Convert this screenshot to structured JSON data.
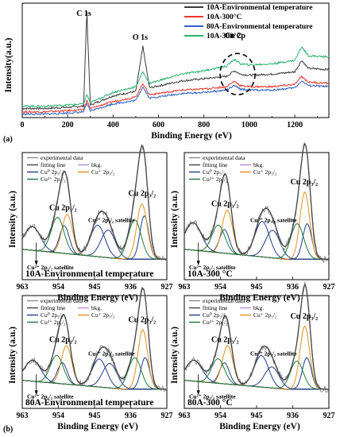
{
  "figure_labels": {
    "a": "(a)",
    "b": "(b)"
  },
  "chart_data": [
    {
      "type": "line",
      "panel": "a",
      "xlabel": "Binding Energy (eV)",
      "ylabel": "Intensity(a.u.)",
      "xlim": [
        0,
        1350
      ],
      "xticks": [
        "0",
        "200",
        "400",
        "600",
        "800",
        "1000",
        "1200"
      ],
      "legend_position": "top-right",
      "annotations": [
        "C 1s",
        "O 1s",
        "Cu 2p"
      ],
      "series": [
        {
          "name": "10A-Environmental temperature",
          "color": "#3a3a3a",
          "x": [
            0,
            100,
            200,
            270,
            284,
            300,
            400,
            500,
            531,
            560,
            700,
            800,
            900,
            934,
            960,
            1000,
            1100,
            1200,
            1230,
            1260,
            1350
          ],
          "y": [
            8,
            8,
            9,
            10,
            92,
            11,
            19,
            23,
            62,
            26,
            32,
            34,
            36,
            41,
            38,
            37,
            38,
            40,
            50,
            43,
            42
          ]
        },
        {
          "name": "10A-300°C",
          "color": "#e8372c",
          "x": [
            0,
            100,
            200,
            270,
            284,
            300,
            400,
            500,
            531,
            560,
            700,
            800,
            900,
            934,
            960,
            1000,
            1100,
            1200,
            1230,
            1260,
            1350
          ],
          "y": [
            5,
            5,
            6,
            7,
            15,
            8,
            14,
            18,
            30,
            20,
            24,
            25,
            27,
            32,
            28,
            27,
            27,
            29,
            36,
            31,
            30
          ]
        },
        {
          "name": "80A-Environmental temperature",
          "color": "#2e60c4",
          "x": [
            0,
            100,
            200,
            270,
            284,
            300,
            400,
            500,
            531,
            560,
            700,
            800,
            900,
            934,
            960,
            1000,
            1100,
            1200,
            1230,
            1260,
            1350
          ],
          "y": [
            3,
            3,
            4,
            5,
            12,
            6,
            12,
            15,
            27,
            17,
            21,
            22,
            24,
            28,
            25,
            24,
            24,
            26,
            32,
            28,
            27
          ]
        },
        {
          "name": "10A-300°C",
          "color": "#27b36b",
          "x": [
            0,
            100,
            200,
            270,
            284,
            300,
            400,
            500,
            531,
            560,
            700,
            800,
            900,
            934,
            960,
            1000,
            1100,
            1200,
            1230,
            1260,
            1350
          ],
          "y": [
            10,
            10,
            11,
            12,
            20,
            13,
            22,
            27,
            40,
            30,
            38,
            41,
            45,
            51,
            47,
            46,
            47,
            50,
            62,
            54,
            53
          ]
        }
      ]
    },
    {
      "type": "line",
      "panel": "b1",
      "xlabel": "Binding Energy (eV)",
      "ylabel": "Intensity (a.u.)",
      "xlim": [
        963,
        927
      ],
      "xticks": [
        "963",
        "954",
        "945",
        "936",
        "927"
      ],
      "sample_label": "10A-Environmental temperature",
      "legend": [
        "experimental data",
        "fitting line",
        "bkg.",
        "Cu⁰ 2p₃/₂",
        "Cu⁺ 2p₃/₂",
        "Cu²⁺ 2p₁/₂"
      ],
      "annotations": [
        "Cu 2p₁/₂",
        "Cu 2p₃/₂",
        "Cu²⁺ 2p₃/₂ satellite",
        "Cu²⁺ 2p₁/₂ satellite"
      ],
      "peaks": [
        {
          "component": "Cu⁰",
          "center": 952.5,
          "height": 0.35,
          "width": 1.2
        },
        {
          "component": "Cu⁺",
          "center": 951.8,
          "height": 0.5,
          "width": 1.3
        },
        {
          "component": "Cu²⁺",
          "center": 954.2,
          "height": 0.45,
          "width": 1.6
        },
        {
          "component": "Cu²⁺ sat",
          "center": 960.5,
          "height": 0.3,
          "width": 2.0
        },
        {
          "component": "Cu²⁺ sat",
          "center": 944.2,
          "height": 0.4,
          "width": 1.8
        },
        {
          "component": "Cu²⁺ sat",
          "center": 941.6,
          "height": 0.35,
          "width": 1.8
        },
        {
          "component": "Cu⁰",
          "center": 932.6,
          "height": 0.55,
          "width": 1.1
        },
        {
          "component": "Cu⁺",
          "center": 933.2,
          "height": 0.7,
          "width": 1.3
        },
        {
          "component": "Cu²⁺",
          "center": 935.0,
          "height": 0.5,
          "width": 1.6
        }
      ]
    },
    {
      "type": "line",
      "panel": "b2",
      "xlabel": "Binding Energy (eV)",
      "ylabel": "Intensity (a.u.)",
      "xlim": [
        963,
        927
      ],
      "xticks": [
        "963",
        "954",
        "945",
        "936",
        "927"
      ],
      "sample_label": "10A-300 °C",
      "legend": [
        "experimental data",
        "fitting line",
        "bkg.",
        "Cu⁰ 2p₃/₂",
        "Cu⁺ 2p₃/₂",
        "Cu²⁺ 2p₁/₂"
      ],
      "annotations": [
        "Cu 2p₁/₂",
        "Cu 2p₃/₂",
        "Cu²⁺ 2p₃/₂ satellite",
        "Cu²⁺ 2p₁/₂ satellite"
      ],
      "peaks": [
        {
          "component": "Cu⁰",
          "center": 953.0,
          "height": 0.3,
          "width": 1.2
        },
        {
          "component": "Cu⁺",
          "center": 952.3,
          "height": 0.55,
          "width": 1.3
        },
        {
          "component": "Cu²⁺",
          "center": 954.5,
          "height": 0.35,
          "width": 1.6
        },
        {
          "component": "Cu²⁺ sat",
          "center": 960.8,
          "height": 0.35,
          "width": 2.0
        },
        {
          "component": "Cu²⁺ sat",
          "center": 943.6,
          "height": 0.45,
          "width": 1.8
        },
        {
          "component": "Cu²⁺ sat",
          "center": 941.0,
          "height": 0.35,
          "width": 1.8
        },
        {
          "component": "Cu⁰",
          "center": 932.4,
          "height": 0.45,
          "width": 1.1
        },
        {
          "component": "Cu⁺",
          "center": 933.0,
          "height": 0.85,
          "width": 1.2
        },
        {
          "component": "Cu²⁺",
          "center": 934.9,
          "height": 0.45,
          "width": 1.6
        }
      ]
    },
    {
      "type": "line",
      "panel": "b3",
      "xlabel": "Binding Energy (eV)",
      "ylabel": "Intensity (a.u.)",
      "xlim": [
        963,
        927
      ],
      "xticks": [
        "963",
        "954",
        "945",
        "936",
        "927"
      ],
      "sample_label": "80A-Environmental temperature",
      "legend": [
        "experimental data",
        "fitting line",
        "bkg.",
        "Cu⁰ 2p₃/₂",
        "Cu⁺ 2p₃/₂",
        "Cu²⁺ 2p₁/₂"
      ],
      "annotations": [
        "Cu 2p₁/₂",
        "Cu 2p₃/₂",
        "Cu²⁺ 2p₃/₂ satellite",
        "Cu²⁺ 2p₁/₂ satellite"
      ],
      "peaks": [
        {
          "component": "Cu⁰",
          "center": 953.0,
          "height": 0.3,
          "width": 1.2
        },
        {
          "component": "Cu⁺",
          "center": 952.0,
          "height": 0.55,
          "width": 1.3
        },
        {
          "component": "Cu²⁺",
          "center": 954.4,
          "height": 0.4,
          "width": 1.6
        },
        {
          "component": "Cu²⁺ sat",
          "center": 960.4,
          "height": 0.3,
          "width": 2.0
        },
        {
          "component": "Cu²⁺ sat",
          "center": 943.8,
          "height": 0.4,
          "width": 1.8
        },
        {
          "component": "Cu²⁺ sat",
          "center": 941.2,
          "height": 0.35,
          "width": 1.8
        },
        {
          "component": "Cu⁰",
          "center": 932.4,
          "height": 0.45,
          "width": 1.1
        },
        {
          "component": "Cu⁺",
          "center": 933.0,
          "height": 0.85,
          "width": 1.2
        },
        {
          "component": "Cu²⁺",
          "center": 935.0,
          "height": 0.45,
          "width": 1.6
        }
      ]
    },
    {
      "type": "line",
      "panel": "b4",
      "xlabel": "Binding Energy (eV)",
      "ylabel": "Intensity (a.u.)",
      "xlim": [
        963,
        927
      ],
      "xticks": [
        "963",
        "954",
        "945",
        "936",
        "927"
      ],
      "sample_label": "80A-300 °C",
      "legend": [
        "experimental data",
        "fitting line",
        "bkg.",
        "Cu⁰ 2p₃/₂",
        "Cu⁺ 2p₃/₂",
        "Cu²⁺ 2p₁/₂"
      ],
      "annotations": [
        "Cu 2p₁/₂",
        "Cu 2p₃/₂",
        "Cu²⁺ 2p₃/₂ satellite",
        "Cu²⁺ 2p₁/₂ satellite"
      ],
      "peaks": [
        {
          "component": "Cu⁰",
          "center": 953.0,
          "height": 0.3,
          "width": 1.2
        },
        {
          "component": "Cu⁺",
          "center": 952.2,
          "height": 0.55,
          "width": 1.3
        },
        {
          "component": "Cu²⁺",
          "center": 954.6,
          "height": 0.35,
          "width": 1.6
        },
        {
          "component": "Cu²⁺ sat",
          "center": 960.6,
          "height": 0.3,
          "width": 2.0
        },
        {
          "component": "Cu²⁺ sat",
          "center": 943.8,
          "height": 0.45,
          "width": 1.8
        },
        {
          "component": "Cu²⁺ sat",
          "center": 941.2,
          "height": 0.3,
          "width": 1.8
        },
        {
          "component": "Cu⁰",
          "center": 932.5,
          "height": 0.45,
          "width": 1.1
        },
        {
          "component": "Cu⁺",
          "center": 933.0,
          "height": 0.9,
          "width": 1.2
        },
        {
          "component": "Cu²⁺",
          "center": 935.0,
          "height": 0.4,
          "width": 1.6
        }
      ]
    }
  ],
  "component_colors": {
    "Cu⁰": "#1f3c8c",
    "Cu⁺": "#e8911c",
    "Cu²⁺": "#1f7a3a",
    "Cu²⁺ sat": "#1f3c8c",
    "bkg": "#b88ad8",
    "fit": "#444444",
    "exp": "#8a8a8a"
  }
}
